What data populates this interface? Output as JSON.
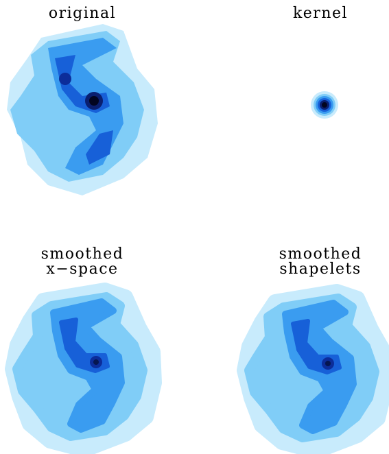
{
  "panels": [
    {
      "title_lines": [
        "original"
      ]
    },
    {
      "title_lines": [
        "kernel"
      ]
    },
    {
      "title_lines": [
        "smoothed",
        "x−space"
      ]
    },
    {
      "title_lines": [
        "smoothed",
        "shapelets"
      ]
    }
  ]
}
